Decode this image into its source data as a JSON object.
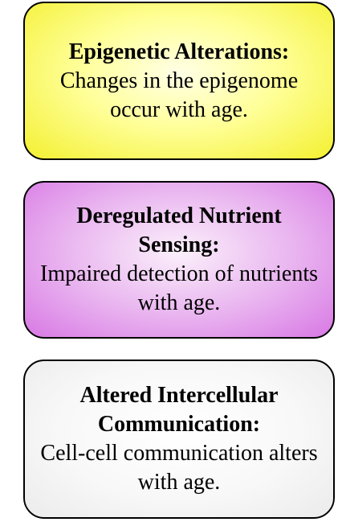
{
  "cards": [
    {
      "title": "Epigenetic Alterations:",
      "description": "Changes in the epigenome occur with age.",
      "color": "#ffff9a"
    },
    {
      "title": "Deregulated Nutrient Sensing:",
      "description": "Impaired detection of nutrients with age.",
      "color": "#eab8f0"
    },
    {
      "title": "Altered Intercellular Communication:",
      "description": "Cell-cell communication alters with age.",
      "color": "#f8f8f8"
    }
  ]
}
